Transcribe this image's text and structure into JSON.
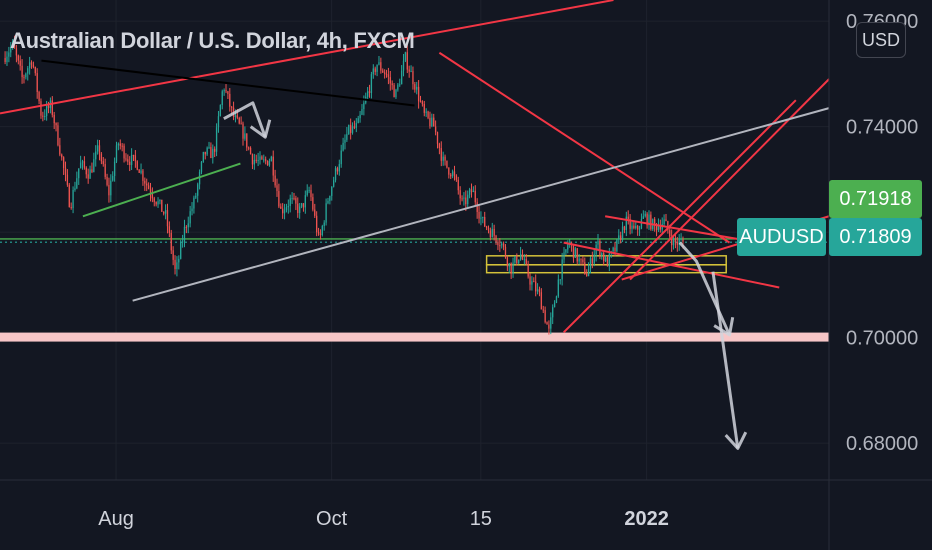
{
  "chart_title": "Australian Dollar / U.S. Dollar, 4h, FXCM",
  "currency_button": "USD",
  "symbol": "AUDUSD",
  "colors": {
    "background": "#131722",
    "grid": "#1e222d",
    "candle_up": "#26a69a",
    "candle_down": "#ef5350",
    "trendline_red": "#f23645",
    "trendline_white": "#b2b5be",
    "trendline_green": "#4caf50",
    "trendline_black": "#000000",
    "zone_yellow": "#d4c23a",
    "support_line": "#f7c6c7",
    "price_tag_high": "#4caf50",
    "price_tag_last": "#26a69a"
  },
  "chart_data": {
    "type": "candlestick",
    "title": "Australian Dollar / U.S. Dollar, 4h, FXCM",
    "xlabel": "",
    "ylabel": "",
    "x_ticks": [
      "Aug",
      "Oct",
      "15",
      "2022"
    ],
    "y_ticks": [
      "0.76000",
      "0.74000",
      "0.72000",
      "0.70000",
      "0.68000"
    ],
    "y_tick_values": [
      0.76,
      0.74,
      0.72,
      0.7,
      0.68
    ],
    "ylim": [
      0.673,
      0.764
    ],
    "grid": true,
    "price_labels": {
      "high_label": "0.71918",
      "last_label": "0.71809",
      "high_value": 0.71918,
      "last_value": 0.71809
    },
    "series": [
      {
        "price_path": [
          0.753,
          0.7555,
          0.749,
          0.753,
          0.742,
          0.744,
          0.735,
          0.725,
          0.733,
          0.731,
          0.736,
          0.727,
          0.737,
          0.734,
          0.733,
          0.729,
          0.726,
          0.723,
          0.712,
          0.721,
          0.726,
          0.735,
          0.735,
          0.748,
          0.742,
          0.739,
          0.734,
          0.733,
          0.734,
          0.724,
          0.726,
          0.724,
          0.728,
          0.718,
          0.727,
          0.733,
          0.739,
          0.74,
          0.746,
          0.752,
          0.75,
          0.746,
          0.753,
          0.748,
          0.742,
          0.74,
          0.733,
          0.731,
          0.725,
          0.728,
          0.722,
          0.72,
          0.718,
          0.713,
          0.716,
          0.711,
          0.708,
          0.701,
          0.711,
          0.718,
          0.715,
          0.712,
          0.718,
          0.714,
          0.717,
          0.722,
          0.72,
          0.723,
          0.721,
          0.722,
          0.718,
          0.7181
        ]
      }
    ],
    "horizontal_levels": [
      {
        "value": 0.7,
        "style": "thick support"
      },
      {
        "value": 0.71809,
        "style": "dotted last price"
      },
      {
        "value": 0.7187,
        "style": "green solid"
      }
    ],
    "zones": [
      {
        "from_value": 0.7123,
        "to_value": 0.7138
      },
      {
        "from_value": 0.7138,
        "to_value": 0.7155
      }
    ],
    "drawings": [
      {
        "style": "red",
        "from": [
          0.0,
          0.7425
        ],
        "to": [
          0.24,
          0.7495
        ]
      },
      {
        "style": "red",
        "from": [
          0.24,
          0.7495
        ],
        "to": [
          0.74,
          0.764
        ]
      },
      {
        "style": "red",
        "from": [
          0.53,
          0.754
        ],
        "to": [
          0.88,
          0.718
        ]
      },
      {
        "style": "red",
        "from": [
          0.73,
          0.723
        ],
        "to": [
          0.99,
          0.716
        ]
      },
      {
        "style": "red",
        "from": [
          0.68,
          0.718
        ],
        "to": [
          0.94,
          0.7095
        ]
      },
      {
        "style": "red",
        "from": [
          0.75,
          0.711
        ],
        "to": [
          1.0,
          0.723
        ]
      },
      {
        "style": "red",
        "from": [
          0.68,
          0.701
        ],
        "to": [
          0.96,
          0.745
        ]
      },
      {
        "style": "red",
        "from": [
          0.76,
          0.711
        ],
        "to": [
          1.0,
          0.749
        ]
      },
      {
        "style": "white",
        "from": [
          0.16,
          0.707
        ],
        "to": [
          1.0,
          0.7435
        ]
      },
      {
        "style": "black",
        "from": [
          0.05,
          0.7525
        ],
        "to": [
          0.5,
          0.744
        ]
      },
      {
        "style": "green",
        "from": [
          0.1,
          0.723
        ],
        "to": [
          0.29,
          0.733
        ]
      }
    ],
    "projection_arrows": [
      [
        [
          0.27,
          0.7415
        ],
        [
          0.305,
          0.7445
        ],
        [
          0.32,
          0.738
        ]
      ],
      [
        [
          0.82,
          0.718
        ],
        [
          0.84,
          0.7145
        ],
        [
          0.88,
          0.7005
        ]
      ],
      [
        [
          0.86,
          0.7125
        ],
        [
          0.89,
          0.679
        ]
      ]
    ]
  }
}
